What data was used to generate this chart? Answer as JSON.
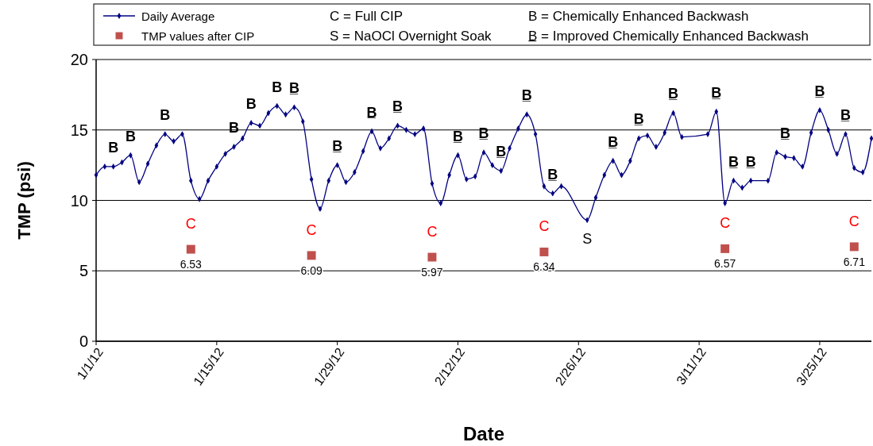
{
  "chart_data": {
    "type": "line",
    "xlabel": "Date",
    "ylabel": "TMP (psi)",
    "xlim": [
      "--01-01",
      "--03-31"
    ],
    "xticks": [
      {
        "value": "--01-01",
        "label": "1/1/12"
      },
      {
        "value": "--01-15",
        "label": "1/15/12"
      },
      {
        "value": "--01-29",
        "label": "1/29/12"
      },
      {
        "value": "--02-12",
        "label": "2/12/12"
      },
      {
        "value": "--02-26",
        "label": "2/26/12"
      },
      {
        "value": "--03-11",
        "label": "3/11/12"
      },
      {
        "value": "--03-25",
        "label": "3/25/12"
      }
    ],
    "ylim": [
      0,
      20
    ],
    "yticks": [
      0,
      5,
      10,
      15,
      20
    ],
    "grid": "y",
    "legend": "top",
    "series": [
      {
        "name": "Daily Average",
        "color": "#000080",
        "marker": "diamond",
        "line_style": "solid",
        "x": [
          "--01-01",
          "--01-02",
          "--01-03",
          "--01-04",
          "--01-05",
          "--01-06",
          "--01-07",
          "--01-08",
          "--01-09",
          "--01-10",
          "--01-11",
          "--01-12",
          "--01-13",
          "--01-14",
          "--01-15",
          "--01-16",
          "--01-17",
          "--01-18",
          "--01-19",
          "--01-20",
          "--01-21",
          "--01-22",
          "--01-23",
          "--01-24",
          "--01-25",
          "--01-26",
          "--01-27",
          "--01-28",
          "--01-29",
          "--01-30",
          "--01-31",
          "--02-01",
          "--02-02",
          "--02-03",
          "--02-04",
          "--02-05",
          "--02-06",
          "--02-07",
          "--02-08",
          "--02-09",
          "--02-10",
          "--02-11",
          "--02-12",
          "--02-13",
          "--02-14",
          "--02-15",
          "--02-16",
          "--02-17",
          "--02-18",
          "--02-19",
          "--02-20",
          "--02-21",
          "--02-22",
          "--02-23",
          "--02-24",
          "--02-27",
          "--02-28",
          "--02-29",
          "--03-01",
          "--03-02",
          "--03-03",
          "--03-04",
          "--03-05",
          "--03-06",
          "--03-07",
          "--03-08",
          "--03-09",
          "--03-12",
          "--03-13",
          "--03-14",
          "--03-15",
          "--03-16",
          "--03-17",
          "--03-19",
          "--03-20",
          "--03-21",
          "--03-22",
          "--03-23",
          "--03-24",
          "--03-25",
          "--03-26",
          "--03-27",
          "--03-28",
          "--03-29",
          "--03-30",
          "--03-31"
        ],
        "values": [
          11.8,
          12.4,
          12.4,
          12.7,
          13.2,
          11.3,
          12.6,
          13.9,
          14.7,
          14.2,
          14.7,
          11.4,
          10.1,
          11.4,
          12.4,
          13.3,
          13.8,
          14.4,
          15.5,
          15.3,
          16.2,
          16.7,
          16.1,
          16.6,
          15.6,
          11.5,
          9.4,
          11.4,
          12.5,
          11.3,
          12.0,
          13.5,
          14.9,
          13.7,
          14.4,
          15.3,
          15.0,
          14.7,
          15.1,
          11.2,
          9.8,
          11.8,
          13.2,
          11.5,
          11.7,
          13.4,
          12.5,
          12.1,
          13.7,
          15.1,
          16.1,
          14.7,
          11.0,
          10.5,
          11.0,
          8.6,
          10.2,
          11.8,
          12.8,
          11.8,
          12.8,
          14.4,
          14.6,
          13.8,
          14.8,
          16.2,
          14.5,
          14.7,
          16.3,
          9.8,
          11.4,
          10.9,
          11.4,
          11.4,
          13.4,
          13.1,
          13.0,
          12.4,
          14.8,
          16.4,
          15.0,
          13.3,
          14.7,
          12.3,
          12.0,
          14.4
        ]
      },
      {
        "name": "TMP values after CIP",
        "type": "scatter",
        "color": "#c0504d",
        "marker": "square",
        "x": [
          "--01-12",
          "--01-26",
          "--02-09",
          "--02-22",
          "--03-14",
          "--03-29"
        ],
        "values": [
          6.53,
          6.09,
          5.97,
          6.34,
          6.57,
          6.71
        ],
        "data_labels": true
      }
    ],
    "annotations": [
      "C = Full CIP",
      "S = NaOCl Overnight Soak",
      "B = Chemically Enhanced Backwash",
      "B̲ = Improved Chemically Enhanced Backwash",
      {
        "text": "B",
        "x": "--01-03",
        "y": 12.4
      },
      {
        "text": "B",
        "x": "--01-05",
        "y": 13.2
      },
      {
        "text": "B",
        "x": "--01-09",
        "y": 14.7
      },
      {
        "text": "C",
        "x": "--01-12",
        "y": 6.53
      },
      {
        "text": "B",
        "x": "--01-17",
        "y": 13.8
      },
      {
        "text": "B",
        "x": "--01-19",
        "y": 15.5
      },
      {
        "text": "B",
        "x": "--01-22",
        "y": 16.7
      },
      {
        "text": "B̲",
        "x": "--01-24",
        "y": 16.6
      },
      {
        "text": "C",
        "x": "--01-26",
        "y": 6.09
      },
      {
        "text": "B̲",
        "x": "--01-29",
        "y": 12.5
      },
      {
        "text": "B̲",
        "x": "--02-02",
        "y": 14.9
      },
      {
        "text": "B̲",
        "x": "--02-05",
        "y": 15.3
      },
      {
        "text": "C",
        "x": "--02-09",
        "y": 5.97
      },
      {
        "text": "B̲",
        "x": "--02-12",
        "y": 13.2
      },
      {
        "text": "B̲",
        "x": "--02-15",
        "y": 13.4
      },
      {
        "text": "B̲",
        "x": "--02-17",
        "y": 12.1
      },
      {
        "text": "B̲",
        "x": "--02-20",
        "y": 16.1
      },
      {
        "text": "C",
        "x": "--02-22",
        "y": 6.34
      },
      {
        "text": "B̲",
        "x": "--02-23",
        "y": 10.5
      },
      {
        "text": "S",
        "x": "--02-27",
        "y": 8.6
      },
      {
        "text": "B̲",
        "x": "--03-01",
        "y": 12.8
      },
      {
        "text": "B̲",
        "x": "--03-04",
        "y": 14.4
      },
      {
        "text": "B̲",
        "x": "--03-08",
        "y": 16.2
      },
      {
        "text": "B̲",
        "x": "--03-13",
        "y": 16.3
      },
      {
        "text": "C",
        "x": "--03-14",
        "y": 6.57
      },
      {
        "text": "B̲",
        "x": "--03-15",
        "y": 11.4
      },
      {
        "text": "B̲",
        "x": "--03-17",
        "y": 11.4
      },
      {
        "text": "B̲",
        "x": "--03-21",
        "y": 13.4
      },
      {
        "text": "B̲",
        "x": "--03-25",
        "y": 16.4
      },
      {
        "text": "B̲",
        "x": "--03-28",
        "y": 14.7
      },
      {
        "text": "C",
        "x": "--03-29",
        "y": 6.71
      }
    ]
  }
}
